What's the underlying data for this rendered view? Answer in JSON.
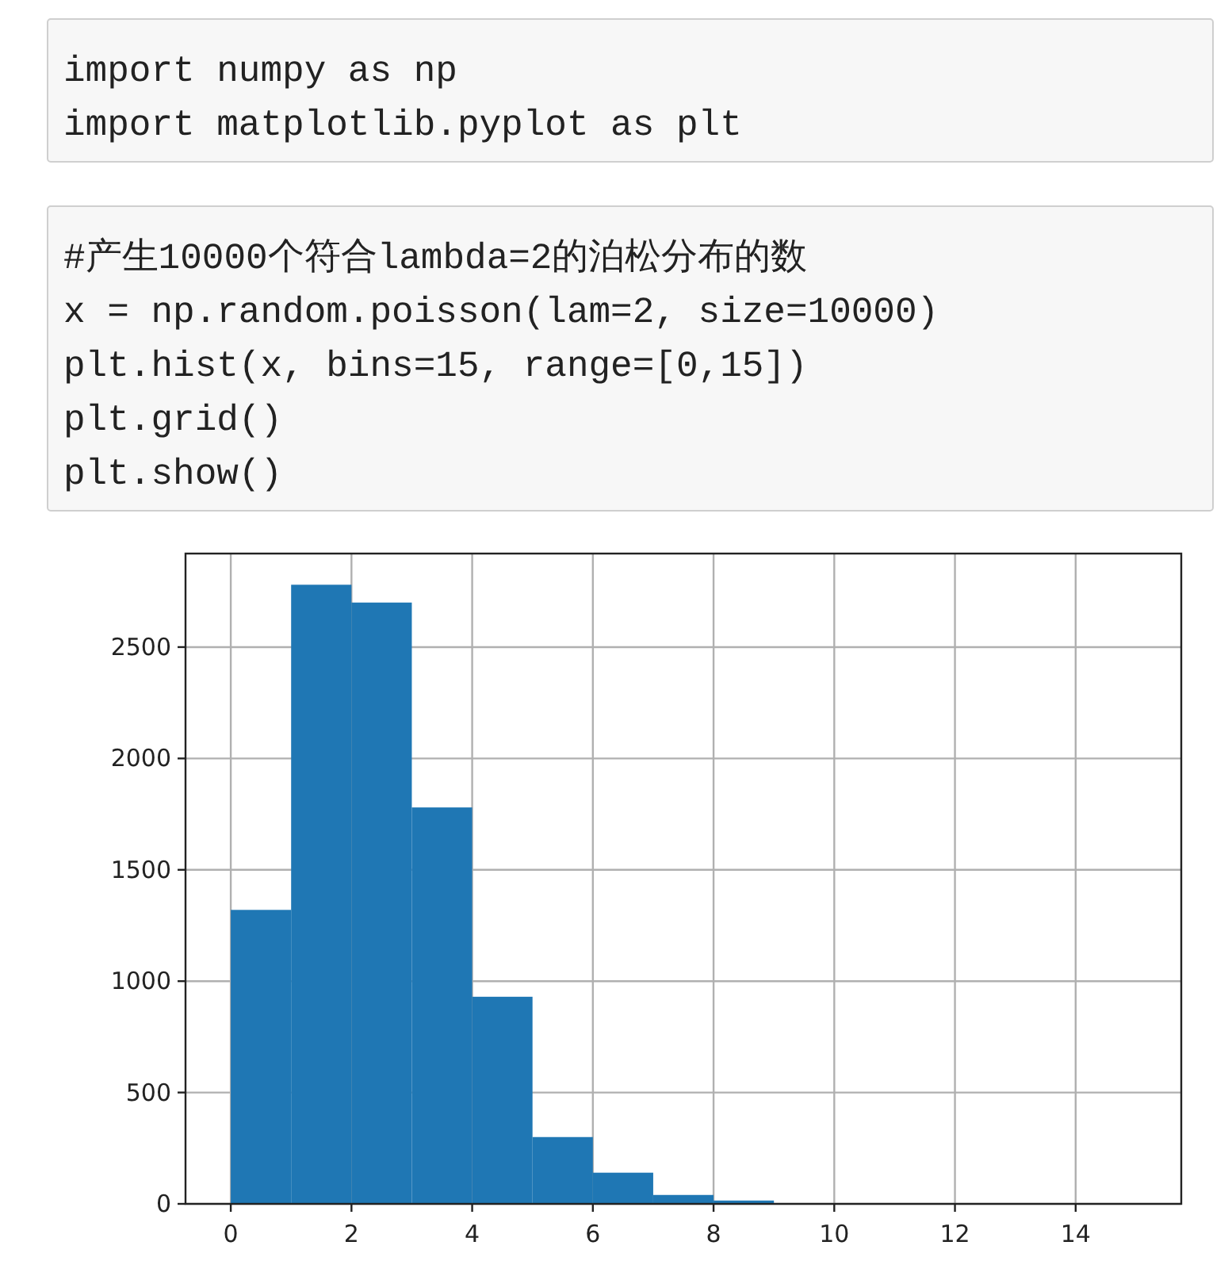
{
  "chart_data": {
    "type": "histogram",
    "annotations": [
      "import numpy as np\nimport matplotlib.pyplot as plt",
      "#产生10000个符合lambda=2的泊松分布的数\nx = np.random.poisson(lam=2, size=10000)\nplt.hist(x, bins=15, range=[0,15])\nplt.grid()\nplt.show()"
    ],
    "bins": [
      0,
      1,
      2,
      3,
      4,
      5,
      6,
      7,
      8,
      9,
      10,
      11,
      12,
      13,
      14,
      15
    ],
    "values": [
      1320,
      2780,
      2700,
      1780,
      930,
      300,
      140,
      40,
      15,
      0,
      0,
      0,
      0,
      0,
      0
    ],
    "color": "#1f77b4",
    "xlim": [
      -0.75,
      15.75
    ],
    "xticks": [
      0,
      2,
      4,
      6,
      8,
      10,
      12,
      14
    ],
    "ylim": [
      0,
      2920
    ],
    "yticks": [
      0,
      500,
      1000,
      1500,
      2000,
      2500
    ],
    "grid": true
  }
}
